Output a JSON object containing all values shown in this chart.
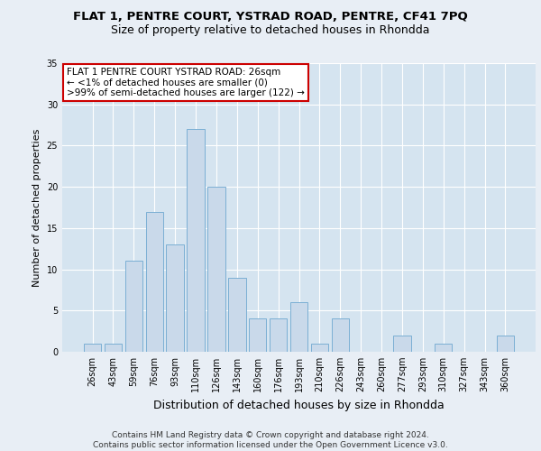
{
  "title_line1": "FLAT 1, PENTRE COURT, YSTRAD ROAD, PENTRE, CF41 7PQ",
  "title_line2": "Size of property relative to detached houses in Rhondda",
  "xlabel": "Distribution of detached houses by size in Rhondda",
  "ylabel": "Number of detached properties",
  "categories": [
    "26sqm",
    "43sqm",
    "59sqm",
    "76sqm",
    "93sqm",
    "110sqm",
    "126sqm",
    "143sqm",
    "160sqm",
    "176sqm",
    "193sqm",
    "210sqm",
    "226sqm",
    "243sqm",
    "260sqm",
    "277sqm",
    "293sqm",
    "310sqm",
    "327sqm",
    "343sqm",
    "360sqm"
  ],
  "values": [
    1,
    1,
    11,
    17,
    13,
    27,
    20,
    9,
    4,
    4,
    6,
    1,
    4,
    0,
    0,
    2,
    0,
    1,
    0,
    0,
    2
  ],
  "bar_color": "#c9d9ea",
  "bar_edge_color": "#7bafd4",
  "annotation_text": "FLAT 1 PENTRE COURT YSTRAD ROAD: 26sqm\n← <1% of detached houses are smaller (0)\n>99% of semi-detached houses are larger (122) →",
  "annotation_box_color": "white",
  "annotation_box_edge": "#cc0000",
  "ylim": [
    0,
    35
  ],
  "yticks": [
    0,
    5,
    10,
    15,
    20,
    25,
    30,
    35
  ],
  "footer_text": "Contains HM Land Registry data © Crown copyright and database right 2024.\nContains public sector information licensed under the Open Government Licence v3.0.",
  "bg_color": "#e8eef5",
  "plot_bg_color": "#d5e4f0",
  "grid_color": "#ffffff",
  "title1_fontsize": 9.5,
  "title2_fontsize": 9.0,
  "ylabel_fontsize": 8.0,
  "xlabel_fontsize": 9.0,
  "tick_fontsize": 7.0,
  "annotation_fontsize": 7.5,
  "footer_fontsize": 6.5
}
